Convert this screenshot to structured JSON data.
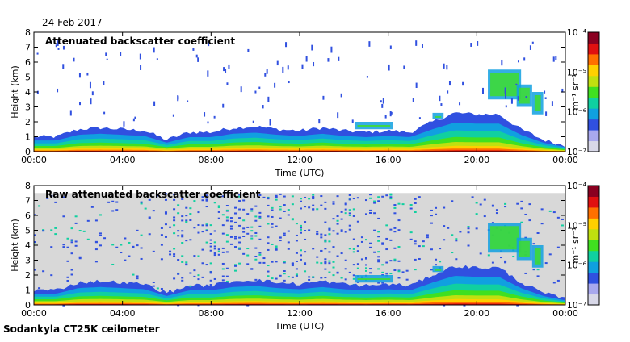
{
  "date": "24 Feb 2017",
  "footer": "Sodankyla CT25K ceilometer",
  "colors": {
    "palette": [
      "#d8d8e8",
      "#a8a8ee",
      "#3050e0",
      "#10a0e0",
      "#10d0a0",
      "#40e020",
      "#c0e010",
      "#ffd000",
      "#ff7000",
      "#e01010",
      "#8a0020"
    ],
    "noise_grey": "#d8d8d8",
    "frame": "#000000"
  },
  "chart_data": [
    {
      "type": "heatmap",
      "title": "Attenuated backscatter coefficient",
      "xlabel": "Time (UTC)",
      "ylabel": "Height (km)",
      "xlim": [
        0,
        24
      ],
      "ylim": [
        0,
        8
      ],
      "x_ticks": [
        "00:00",
        "04:00",
        "08:00",
        "12:00",
        "16:00",
        "20:00",
        "00:00"
      ],
      "y_ticks": [
        "0",
        "1",
        "2",
        "3",
        "4",
        "5",
        "6",
        "7",
        "8"
      ],
      "colorbar": {
        "label": "m⁻¹ sr⁻¹",
        "scale": "log",
        "range": [
          1e-07,
          0.0001
        ],
        "ticks": [
          "10⁻⁷",
          "10⁻⁶",
          "10⁻⁵",
          "10⁻⁴"
        ]
      },
      "noise_background": false,
      "boundary_layer_top_km": [
        [
          0,
          1.0
        ],
        [
          1,
          1.0
        ],
        [
          2,
          1.5
        ],
        [
          3,
          1.6
        ],
        [
          4,
          1.5
        ],
        [
          5,
          1.4
        ],
        [
          6,
          0.8
        ],
        [
          7,
          1.3
        ],
        [
          8,
          1.3
        ],
        [
          9,
          1.6
        ],
        [
          10,
          1.7
        ],
        [
          11,
          1.5
        ],
        [
          12,
          1.4
        ],
        [
          13,
          1.6
        ],
        [
          14,
          1.4
        ],
        [
          15,
          1.3
        ],
        [
          16,
          1.4
        ],
        [
          17,
          1.3
        ],
        [
          18,
          2.0
        ],
        [
          19,
          2.6
        ],
        [
          20,
          2.5
        ],
        [
          21,
          2.5
        ],
        [
          22,
          1.5
        ],
        [
          23,
          0.8
        ],
        [
          24,
          0.4
        ]
      ],
      "cloud_layers": [
        {
          "t0": 14.5,
          "t1": 16.2,
          "h0": 1.5,
          "h1": 2.0
        },
        {
          "t0": 18.0,
          "t1": 18.5,
          "h0": 2.2,
          "h1": 2.6
        },
        {
          "t0": 20.5,
          "t1": 22.0,
          "h0": 3.5,
          "h1": 5.5
        },
        {
          "t0": 21.8,
          "t1": 22.5,
          "h0": 3.0,
          "h1": 4.5
        },
        {
          "t0": 22.5,
          "t1": 23.0,
          "h0": 2.5,
          "h1": 4.0
        }
      ]
    },
    {
      "type": "heatmap",
      "title": "Raw attenuated backscatter coefficient",
      "xlabel": "Time (UTC)",
      "ylabel": "Height (km)",
      "xlim": [
        0,
        24
      ],
      "ylim": [
        0,
        8
      ],
      "x_ticks": [
        "00:00",
        "04:00",
        "08:00",
        "12:00",
        "16:00",
        "20:00",
        "00:00"
      ],
      "y_ticks": [
        "0",
        "1",
        "2",
        "3",
        "4",
        "5",
        "6",
        "7",
        "8"
      ],
      "colorbar": {
        "label": "m⁻¹ sr⁻¹",
        "scale": "log",
        "range": [
          1e-07,
          0.0001
        ],
        "ticks": [
          "10⁻⁷",
          "10⁻⁶",
          "10⁻⁵",
          "10⁻⁴"
        ]
      },
      "noise_background": true,
      "noise_top_km": 7.5,
      "boundary_layer_top_km": [
        [
          0,
          1.0
        ],
        [
          1,
          1.0
        ],
        [
          2,
          1.5
        ],
        [
          3,
          1.6
        ],
        [
          4,
          1.5
        ],
        [
          5,
          1.4
        ],
        [
          6,
          0.8
        ],
        [
          7,
          1.3
        ],
        [
          8,
          1.3
        ],
        [
          9,
          1.6
        ],
        [
          10,
          1.7
        ],
        [
          11,
          1.5
        ],
        [
          12,
          1.4
        ],
        [
          13,
          1.6
        ],
        [
          14,
          1.4
        ],
        [
          15,
          1.3
        ],
        [
          16,
          1.4
        ],
        [
          17,
          1.3
        ],
        [
          18,
          2.0
        ],
        [
          19,
          2.6
        ],
        [
          20,
          2.5
        ],
        [
          21,
          2.5
        ],
        [
          22,
          1.5
        ],
        [
          23,
          0.8
        ],
        [
          24,
          0.4
        ]
      ],
      "cloud_layers": [
        {
          "t0": 14.5,
          "t1": 16.2,
          "h0": 1.5,
          "h1": 2.0
        },
        {
          "t0": 18.0,
          "t1": 18.5,
          "h0": 2.2,
          "h1": 2.6
        },
        {
          "t0": 20.5,
          "t1": 22.0,
          "h0": 3.5,
          "h1": 5.5
        },
        {
          "t0": 21.8,
          "t1": 22.5,
          "h0": 3.0,
          "h1": 4.5
        },
        {
          "t0": 22.5,
          "t1": 23.0,
          "h0": 2.5,
          "h1": 4.0
        }
      ]
    }
  ]
}
